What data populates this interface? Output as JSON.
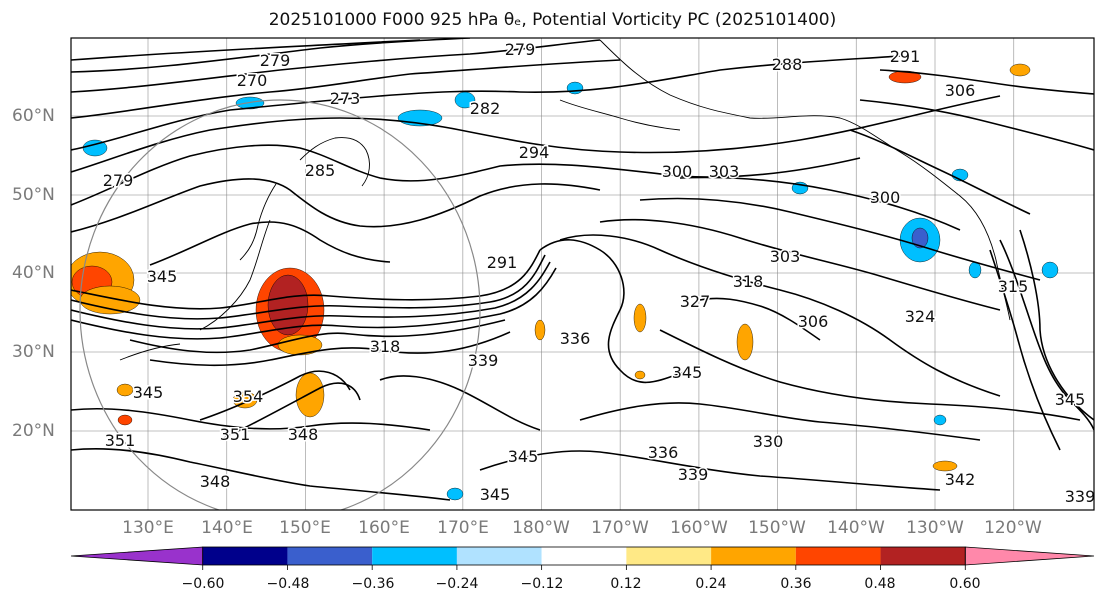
{
  "figure": {
    "title": "2025101000 F000 925 hPa θₑ, Potential Vorticity PC (2025101400)"
  },
  "map": {
    "lat_labels": [
      "60°N",
      "50°N",
      "40°N",
      "30°N",
      "20°N"
    ],
    "lon_labels": [
      "130°E",
      "140°E",
      "150°E",
      "160°E",
      "170°E",
      "180°W",
      "170°W",
      "160°W",
      "150°W",
      "140°W",
      "130°W",
      "120°W"
    ],
    "contour_labels": [
      "270",
      "279",
      "273",
      "279",
      "282",
      "285",
      "279",
      "288",
      "291",
      "306",
      "294",
      "300",
      "303",
      "300",
      "303",
      "306",
      "318",
      "327",
      "324",
      "315",
      "318",
      "336",
      "339",
      "345",
      "330",
      "336",
      "339",
      "345",
      "345",
      "354",
      "348",
      "351",
      "348",
      "345",
      "351",
      "345",
      "342",
      "339",
      "345",
      "291"
    ],
    "coastline_color": "#000000",
    "contour_color": "#000000",
    "grid_color": "#888888"
  },
  "colorbar": {
    "tick_labels": [
      "−0.60",
      "−0.48",
      "−0.36",
      "−0.24",
      "−0.12",
      "0.12",
      "0.24",
      "0.36",
      "0.48",
      "0.60"
    ],
    "colors": [
      "#9932cc",
      "#00008b",
      "#3a5fcd",
      "#00bfff",
      "#b0e2ff",
      "#ffffff",
      "#ffe986",
      "#ffa500",
      "#ff4500",
      "#b22222",
      "#ff88aa"
    ]
  }
}
